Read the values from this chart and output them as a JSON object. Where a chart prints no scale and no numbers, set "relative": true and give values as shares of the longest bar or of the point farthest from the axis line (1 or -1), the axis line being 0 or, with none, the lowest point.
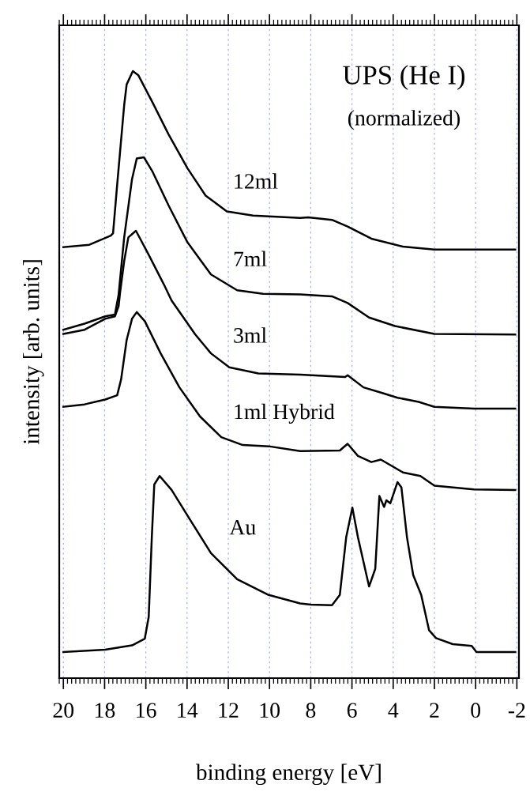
{
  "chart_data": {
    "type": "line",
    "title": "UPS (He I)",
    "subtitle": "(normalized)",
    "xlabel": "binding energy [eV]",
    "ylabel": "intensity [arb. units]",
    "relative": true,
    "xlim": [
      20.2,
      -2.1
    ],
    "xticks": [
      20,
      18,
      16,
      14,
      12,
      10,
      8,
      6,
      4,
      2,
      0,
      -2
    ],
    "tick_labels": "x",
    "grid": "x",
    "legend": false,
    "marker": "none",
    "line_style": "solid",
    "series": [
      {
        "name": "12ml",
        "color": "#000000",
        "x": [
          20,
          18.74,
          17.7,
          17.59,
          17.39,
          17.05,
          16.93,
          16.63,
          16.36,
          15.67,
          14.9,
          13.98,
          13.1,
          12.07,
          10.8,
          8.51,
          8.12,
          6.97,
          6.21,
          5.06,
          3.53,
          2.0,
          -1.92
        ],
        "values": [
          0.71,
          0.714,
          0.729,
          0.733,
          0.813,
          0.944,
          0.978,
          1.0,
          0.993,
          0.948,
          0.896,
          0.84,
          0.795,
          0.769,
          0.762,
          0.758,
          0.759,
          0.755,
          0.744,
          0.724,
          0.711,
          0.706,
          0.706
        ]
      },
      {
        "name": "7ml",
        "color": "#000000",
        "x": [
          20,
          18.97,
          17.97,
          17.5,
          17.32,
          17.05,
          16.67,
          16.44,
          16.09,
          15.67,
          14.9,
          13.98,
          12.84,
          11.57,
          10.31,
          8.51,
          6.97,
          6.21,
          5.17,
          3.91,
          2.0,
          -1.92
        ],
        "values": [
          0.574,
          0.584,
          0.596,
          0.599,
          0.632,
          0.726,
          0.822,
          0.856,
          0.858,
          0.834,
          0.779,
          0.718,
          0.665,
          0.639,
          0.633,
          0.632,
          0.629,
          0.618,
          0.594,
          0.58,
          0.567,
          0.566
        ]
      },
      {
        "name": "3ml",
        "color": "#000000",
        "x": [
          20,
          18.97,
          17.97,
          17.5,
          17.32,
          17.25,
          17.05,
          16.85,
          16.48,
          15.9,
          15.13,
          14.75,
          13.6,
          12.84,
          11.95,
          10.54,
          8.51,
          6.33,
          6.21,
          5.44,
          4.56,
          3.79,
          2.76,
          2.0,
          0.08,
          -1.92
        ],
        "values": [
          0.567,
          0.574,
          0.592,
          0.596,
          0.613,
          0.635,
          0.687,
          0.726,
          0.737,
          0.7,
          0.649,
          0.622,
          0.566,
          0.535,
          0.512,
          0.502,
          0.5,
          0.496,
          0.499,
          0.479,
          0.47,
          0.462,
          0.455,
          0.447,
          0.444,
          0.444
        ]
      },
      {
        "name": "1ml Hybrid",
        "color": "#000000",
        "x": [
          20,
          18.97,
          17.97,
          17.39,
          17.2,
          16.93,
          16.67,
          16.44,
          16.05,
          15.28,
          14.37,
          13.37,
          12.34,
          11.3,
          10.04,
          8.51,
          6.59,
          6.21,
          5.71,
          5.06,
          4.6,
          3.53,
          2.68,
          2.0,
          0.08,
          -1.92
        ],
        "values": [
          0.447,
          0.451,
          0.459,
          0.466,
          0.492,
          0.557,
          0.592,
          0.603,
          0.588,
          0.535,
          0.479,
          0.431,
          0.397,
          0.384,
          0.382,
          0.374,
          0.375,
          0.386,
          0.366,
          0.356,
          0.36,
          0.339,
          0.333,
          0.317,
          0.311,
          0.31
        ]
      },
      {
        "name": "Au",
        "color": "#000000",
        "x": [
          20,
          17.97,
          16.67,
          16.05,
          15.86,
          15.71,
          15.59,
          15.33,
          14.75,
          13.87,
          12.84,
          11.57,
          10.04,
          8.51,
          8.0,
          6.97,
          6.59,
          6.28,
          5.98,
          5.71,
          5.17,
          4.87,
          4.67,
          4.44,
          4.33,
          4.14,
          3.79,
          3.6,
          3.33,
          3.03,
          2.64,
          2.26,
          1.92,
          1.11,
          0.19,
          -0.04,
          -1.92
        ],
        "values": [
          0.043,
          0.047,
          0.054,
          0.065,
          0.101,
          0.232,
          0.319,
          0.333,
          0.31,
          0.262,
          0.206,
          0.163,
          0.137,
          0.123,
          0.121,
          0.12,
          0.137,
          0.232,
          0.281,
          0.232,
          0.151,
          0.18,
          0.3,
          0.282,
          0.293,
          0.288,
          0.323,
          0.314,
          0.232,
          0.17,
          0.137,
          0.079,
          0.066,
          0.056,
          0.053,
          0.043,
          0.043
        ]
      }
    ]
  }
}
